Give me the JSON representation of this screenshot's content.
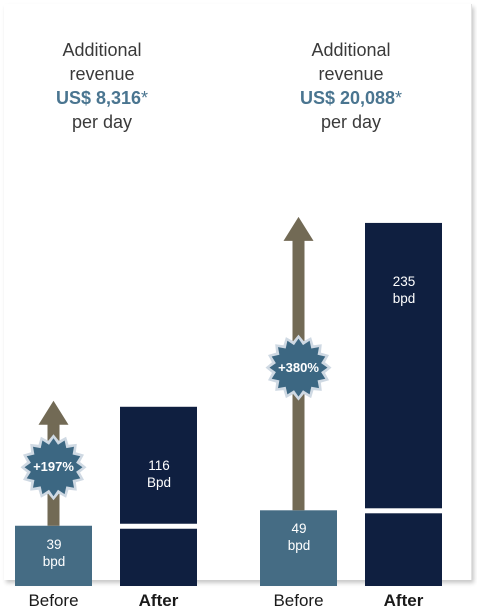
{
  "headlines": [
    {
      "line1": "Additional",
      "line2": "revenue",
      "amount": "US$ 8,316",
      "star": "*",
      "line4": "per day"
    },
    {
      "line1": "Additional",
      "line2": "revenue",
      "amount": "US$ 20,088",
      "star": "*",
      "line4": "per day"
    }
  ],
  "chart_data": {
    "type": "bar",
    "categories": [
      "Before",
      "After",
      "Before",
      "After"
    ],
    "groups": [
      {
        "before": 39,
        "after": 116,
        "before_label": "39\nbpd",
        "after_label": "116\nBpd",
        "increase_label": "+197%"
      },
      {
        "before": 49,
        "after": 235,
        "before_label": "49\nbpd",
        "after_label": "235\nbpd",
        "increase_label": "+380%"
      }
    ],
    "unit": "bpd",
    "colors": {
      "before": "#456c84",
      "after": "#0f1f40",
      "arrow": "#726a55",
      "badge": "#3c6782",
      "badge_rim": "#cfd9e3",
      "marker": "#ffffff"
    }
  }
}
